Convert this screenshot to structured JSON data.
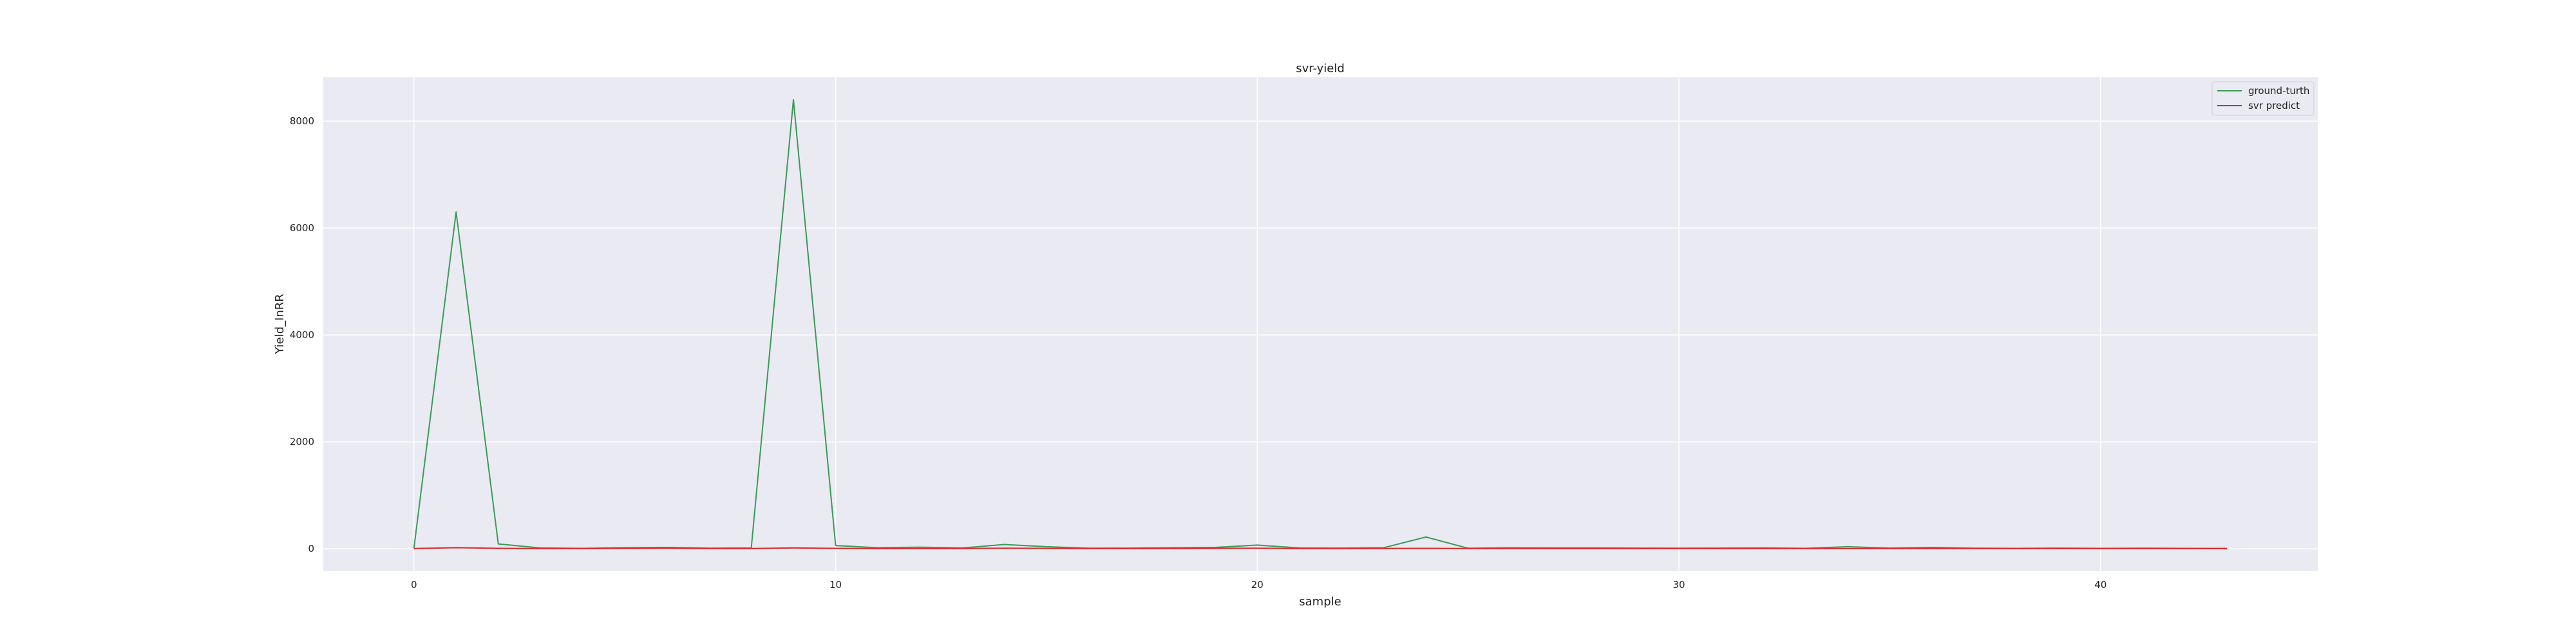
{
  "chart_data": {
    "type": "line",
    "title": "svr-yield",
    "xlabel": "sample",
    "ylabel": "Yield_InRR",
    "xlim": [
      -2.15,
      45.15
    ],
    "ylim": [
      -420,
      8820
    ],
    "x_ticks": [
      0,
      10,
      20,
      30,
      40
    ],
    "y_ticks": [
      0,
      2000,
      4000,
      6000,
      8000
    ],
    "grid": true,
    "legend_position": "top-right",
    "x": [
      0,
      1,
      2,
      3,
      4,
      5,
      6,
      7,
      8,
      9,
      10,
      11,
      12,
      13,
      14,
      15,
      16,
      17,
      18,
      19,
      20,
      21,
      22,
      23,
      24,
      25,
      26,
      27,
      28,
      29,
      30,
      31,
      32,
      33,
      34,
      35,
      36,
      37,
      38,
      39,
      40,
      41,
      42,
      43
    ],
    "series": [
      {
        "name": "ground-turth",
        "color": "#3a9a57",
        "values": [
          10,
          6300,
          90,
          15,
          8,
          20,
          25,
          10,
          15,
          8400,
          60,
          20,
          30,
          15,
          80,
          40,
          10,
          12,
          20,
          25,
          70,
          15,
          12,
          20,
          220,
          10,
          18,
          15,
          15,
          12,
          10,
          12,
          15,
          8,
          40,
          12,
          25,
          10,
          8,
          12,
          8,
          10,
          8,
          5
        ]
      },
      {
        "name": "svr predict",
        "color": "#d62728",
        "values": [
          5,
          20,
          8,
          5,
          5,
          8,
          10,
          5,
          5,
          15,
          8,
          5,
          5,
          5,
          10,
          8,
          5,
          5,
          5,
          8,
          10,
          5,
          5,
          5,
          8,
          5,
          5,
          5,
          5,
          5,
          5,
          5,
          5,
          5,
          5,
          5,
          5,
          5,
          5,
          5,
          5,
          5,
          5,
          5
        ]
      }
    ]
  }
}
